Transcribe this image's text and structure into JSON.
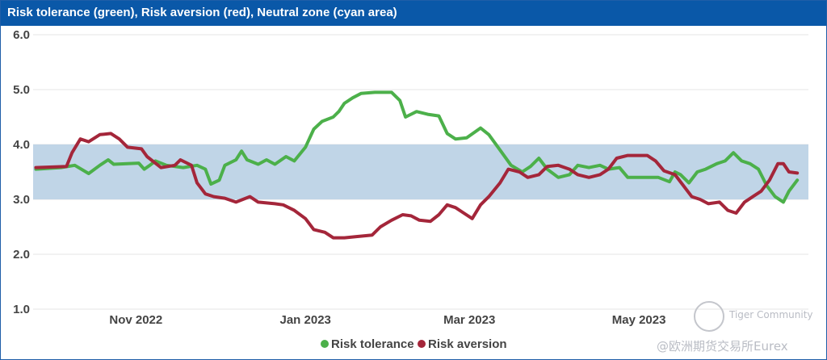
{
  "chart_data": {
    "type": "line",
    "title": "Risk tolerance (green), Risk aversion (red), Neutral zone (cyan area)",
    "ylim": [
      1.0,
      6.0
    ],
    "yticks": [
      "6.0",
      "5.0",
      "4.0",
      "3.0",
      "2.0",
      "1.0"
    ],
    "x_range": [
      "2022-09-25",
      "2023-07-01"
    ],
    "xticks": [
      {
        "label": "Nov 2022",
        "date": "2022-11-01"
      },
      {
        "label": "Jan 2023",
        "date": "2023-01-01"
      },
      {
        "label": "Mar 2023",
        "date": "2023-03-01"
      },
      {
        "label": "May 2023",
        "date": "2023-05-01"
      }
    ],
    "neutral_zone": {
      "low": 3.0,
      "high": 4.0,
      "color": "#c0d5e7"
    },
    "series": [
      {
        "name": "Risk tolerance",
        "color": "#4cb04a",
        "points": [
          [
            "2022-09-26",
            3.55
          ],
          [
            "2022-10-05",
            3.58
          ],
          [
            "2022-10-10",
            3.62
          ],
          [
            "2022-10-15",
            3.47
          ],
          [
            "2022-10-19",
            3.62
          ],
          [
            "2022-10-22",
            3.72
          ],
          [
            "2022-10-24",
            3.64
          ],
          [
            "2022-11-02",
            3.66
          ],
          [
            "2022-11-04",
            3.55
          ],
          [
            "2022-11-06",
            3.62
          ],
          [
            "2022-11-08",
            3.7
          ],
          [
            "2022-11-12",
            3.62
          ],
          [
            "2022-11-18",
            3.58
          ],
          [
            "2022-11-23",
            3.62
          ],
          [
            "2022-11-26",
            3.55
          ],
          [
            "2022-11-28",
            3.28
          ],
          [
            "2022-12-01",
            3.35
          ],
          [
            "2022-12-03",
            3.62
          ],
          [
            "2022-12-07",
            3.72
          ],
          [
            "2022-12-09",
            3.88
          ],
          [
            "2022-12-11",
            3.72
          ],
          [
            "2022-12-15",
            3.64
          ],
          [
            "2022-12-18",
            3.72
          ],
          [
            "2022-12-21",
            3.64
          ],
          [
            "2022-12-25",
            3.78
          ],
          [
            "2022-12-28",
            3.7
          ],
          [
            "2023-01-01",
            3.95
          ],
          [
            "2023-01-04",
            4.28
          ],
          [
            "2023-01-07",
            4.42
          ],
          [
            "2023-01-11",
            4.5
          ],
          [
            "2023-01-13",
            4.6
          ],
          [
            "2023-01-15",
            4.75
          ],
          [
            "2023-01-18",
            4.85
          ],
          [
            "2023-01-21",
            4.93
          ],
          [
            "2023-01-26",
            4.95
          ],
          [
            "2023-02-01",
            4.95
          ],
          [
            "2023-02-04",
            4.8
          ],
          [
            "2023-02-06",
            4.5
          ],
          [
            "2023-02-10",
            4.6
          ],
          [
            "2023-02-14",
            4.55
          ],
          [
            "2023-02-18",
            4.52
          ],
          [
            "2023-02-21",
            4.2
          ],
          [
            "2023-02-24",
            4.1
          ],
          [
            "2023-02-28",
            4.12
          ],
          [
            "2023-03-05",
            4.3
          ],
          [
            "2023-03-08",
            4.18
          ],
          [
            "2023-03-12",
            3.9
          ],
          [
            "2023-03-16",
            3.62
          ],
          [
            "2023-03-20",
            3.5
          ],
          [
            "2023-03-23",
            3.6
          ],
          [
            "2023-03-26",
            3.75
          ],
          [
            "2023-03-29",
            3.55
          ],
          [
            "2023-04-02",
            3.4
          ],
          [
            "2023-04-06",
            3.45
          ],
          [
            "2023-04-09",
            3.62
          ],
          [
            "2023-04-13",
            3.58
          ],
          [
            "2023-04-17",
            3.62
          ],
          [
            "2023-04-20",
            3.55
          ],
          [
            "2023-04-24",
            3.58
          ],
          [
            "2023-04-27",
            3.4
          ],
          [
            "2023-05-03",
            3.4
          ],
          [
            "2023-05-08",
            3.4
          ],
          [
            "2023-05-12",
            3.32
          ],
          [
            "2023-05-14",
            3.5
          ],
          [
            "2023-05-16",
            3.45
          ],
          [
            "2023-05-19",
            3.3
          ],
          [
            "2023-05-22",
            3.5
          ],
          [
            "2023-05-25",
            3.55
          ],
          [
            "2023-05-29",
            3.65
          ],
          [
            "2023-06-01",
            3.7
          ],
          [
            "2023-06-04",
            3.85
          ],
          [
            "2023-06-07",
            3.7
          ],
          [
            "2023-06-10",
            3.65
          ],
          [
            "2023-06-13",
            3.55
          ],
          [
            "2023-06-16",
            3.25
          ],
          [
            "2023-06-19",
            3.05
          ],
          [
            "2023-06-22",
            2.95
          ],
          [
            "2023-06-24",
            3.15
          ],
          [
            "2023-06-27",
            3.35
          ]
        ]
      },
      {
        "name": "Risk aversion",
        "color": "#a4263a",
        "points": [
          [
            "2022-09-26",
            3.58
          ],
          [
            "2022-10-07",
            3.6
          ],
          [
            "2022-10-09",
            3.85
          ],
          [
            "2022-10-12",
            4.1
          ],
          [
            "2022-10-15",
            4.05
          ],
          [
            "2022-10-19",
            4.18
          ],
          [
            "2022-10-23",
            4.2
          ],
          [
            "2022-10-26",
            4.1
          ],
          [
            "2022-10-29",
            3.95
          ],
          [
            "2022-11-03",
            3.92
          ],
          [
            "2022-11-05",
            3.78
          ],
          [
            "2022-11-10",
            3.58
          ],
          [
            "2022-11-15",
            3.62
          ],
          [
            "2022-11-17",
            3.72
          ],
          [
            "2022-11-21",
            3.62
          ],
          [
            "2022-11-23",
            3.3
          ],
          [
            "2022-11-26",
            3.1
          ],
          [
            "2022-11-29",
            3.05
          ],
          [
            "2022-12-03",
            3.02
          ],
          [
            "2022-12-07",
            2.95
          ],
          [
            "2022-12-12",
            3.05
          ],
          [
            "2022-12-15",
            2.95
          ],
          [
            "2022-12-21",
            2.92
          ],
          [
            "2022-12-24",
            2.9
          ],
          [
            "2022-12-28",
            2.8
          ],
          [
            "2023-01-01",
            2.65
          ],
          [
            "2023-01-04",
            2.45
          ],
          [
            "2023-01-08",
            2.4
          ],
          [
            "2023-01-11",
            2.3
          ],
          [
            "2023-01-15",
            2.3
          ],
          [
            "2023-01-19",
            2.32
          ],
          [
            "2023-01-25",
            2.35
          ],
          [
            "2023-01-28",
            2.5
          ],
          [
            "2023-02-01",
            2.62
          ],
          [
            "2023-02-05",
            2.72
          ],
          [
            "2023-02-08",
            2.7
          ],
          [
            "2023-02-11",
            2.62
          ],
          [
            "2023-02-15",
            2.6
          ],
          [
            "2023-02-18",
            2.72
          ],
          [
            "2023-02-21",
            2.9
          ],
          [
            "2023-02-24",
            2.85
          ],
          [
            "2023-02-27",
            2.75
          ],
          [
            "2023-03-02",
            2.65
          ],
          [
            "2023-03-05",
            2.9
          ],
          [
            "2023-03-08",
            3.05
          ],
          [
            "2023-03-12",
            3.3
          ],
          [
            "2023-03-15",
            3.55
          ],
          [
            "2023-03-19",
            3.5
          ],
          [
            "2023-03-22",
            3.4
          ],
          [
            "2023-03-26",
            3.45
          ],
          [
            "2023-03-29",
            3.6
          ],
          [
            "2023-04-02",
            3.62
          ],
          [
            "2023-04-06",
            3.55
          ],
          [
            "2023-04-09",
            3.45
          ],
          [
            "2023-04-13",
            3.4
          ],
          [
            "2023-04-17",
            3.45
          ],
          [
            "2023-04-20",
            3.55
          ],
          [
            "2023-04-23",
            3.75
          ],
          [
            "2023-04-27",
            3.8
          ],
          [
            "2023-05-01",
            3.8
          ],
          [
            "2023-05-04",
            3.8
          ],
          [
            "2023-05-07",
            3.7
          ],
          [
            "2023-05-10",
            3.52
          ],
          [
            "2023-05-14",
            3.45
          ],
          [
            "2023-05-17",
            3.25
          ],
          [
            "2023-05-20",
            3.05
          ],
          [
            "2023-05-23",
            3.0
          ],
          [
            "2023-05-26",
            2.92
          ],
          [
            "2023-05-30",
            2.95
          ],
          [
            "2023-06-02",
            2.8
          ],
          [
            "2023-06-05",
            2.75
          ],
          [
            "2023-06-08",
            2.95
          ],
          [
            "2023-06-11",
            3.05
          ],
          [
            "2023-06-14",
            3.15
          ],
          [
            "2023-06-17",
            3.35
          ],
          [
            "2023-06-20",
            3.65
          ],
          [
            "2023-06-22",
            3.65
          ],
          [
            "2023-06-24",
            3.5
          ],
          [
            "2023-06-27",
            3.48
          ]
        ]
      }
    ],
    "legend": {
      "position": "bottom-center",
      "entries": [
        "Risk tolerance",
        "Risk aversion"
      ]
    }
  },
  "watermark": {
    "brand": "Tiger Community",
    "handle": "@欧洲期货交易所Eurex"
  }
}
